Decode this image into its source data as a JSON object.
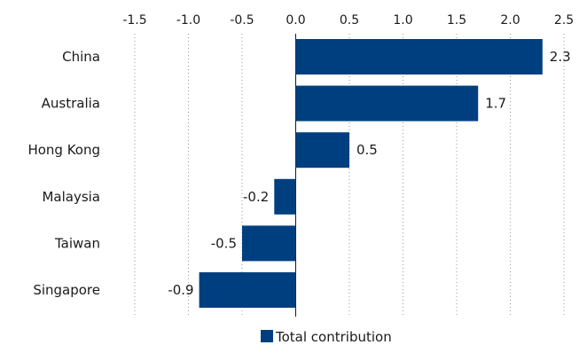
{
  "chart_data": {
    "type": "bar",
    "orientation": "horizontal",
    "categories": [
      "China",
      "Australia",
      "Hong Kong",
      "Malaysia",
      "Taiwan",
      "Singapore"
    ],
    "series": [
      {
        "name": "Total contribution",
        "values": [
          2.3,
          1.7,
          0.5,
          -0.2,
          -0.5,
          -0.9
        ],
        "color": "#003f7f"
      }
    ],
    "data_labels": [
      "2.3",
      "1.7",
      "0.5",
      "-0.2",
      "-0.5",
      "-0.9"
    ],
    "xlim": [
      -1.5,
      2.5
    ],
    "xticks": [
      -1.5,
      -1.0,
      -0.5,
      0.0,
      0.5,
      1.0,
      1.5,
      2.0,
      2.5
    ],
    "xtick_labels": [
      "-1.5",
      "-1.0",
      "-0.5",
      "0.0",
      "0.5",
      "1.0",
      "1.5",
      "2.0",
      "2.5"
    ],
    "x_axis_position": "top",
    "grid": "vertical-dotted",
    "legend_position": "bottom-center",
    "title": "",
    "xlabel": "",
    "ylabel": ""
  }
}
